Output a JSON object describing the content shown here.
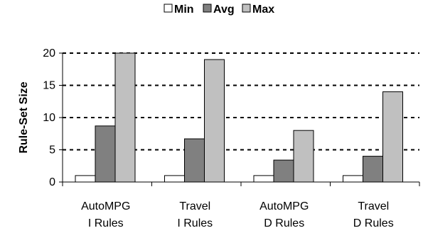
{
  "chart_data": {
    "type": "bar",
    "categories": [
      [
        "AutoMPG",
        "I Rules"
      ],
      [
        "Travel",
        "I Rules"
      ],
      [
        "AutoMPG",
        "D Rules"
      ],
      [
        "Travel",
        "D Rules"
      ]
    ],
    "series": [
      {
        "name": "Min",
        "color": "#ffffff",
        "values": [
          1,
          1,
          1,
          1
        ]
      },
      {
        "name": "Avg",
        "color": "#808080",
        "values": [
          8.7,
          6.7,
          3.4,
          4
        ]
      },
      {
        "name": "Max",
        "color": "#c0c0c0",
        "values": [
          20,
          19,
          8,
          14
        ]
      }
    ],
    "ylabel": "Rule-Set Size",
    "ylim": [
      0,
      20
    ],
    "yticks": [
      "0",
      "5",
      "10",
      "15",
      "20"
    ],
    "grid": true,
    "legend_position": "top"
  }
}
